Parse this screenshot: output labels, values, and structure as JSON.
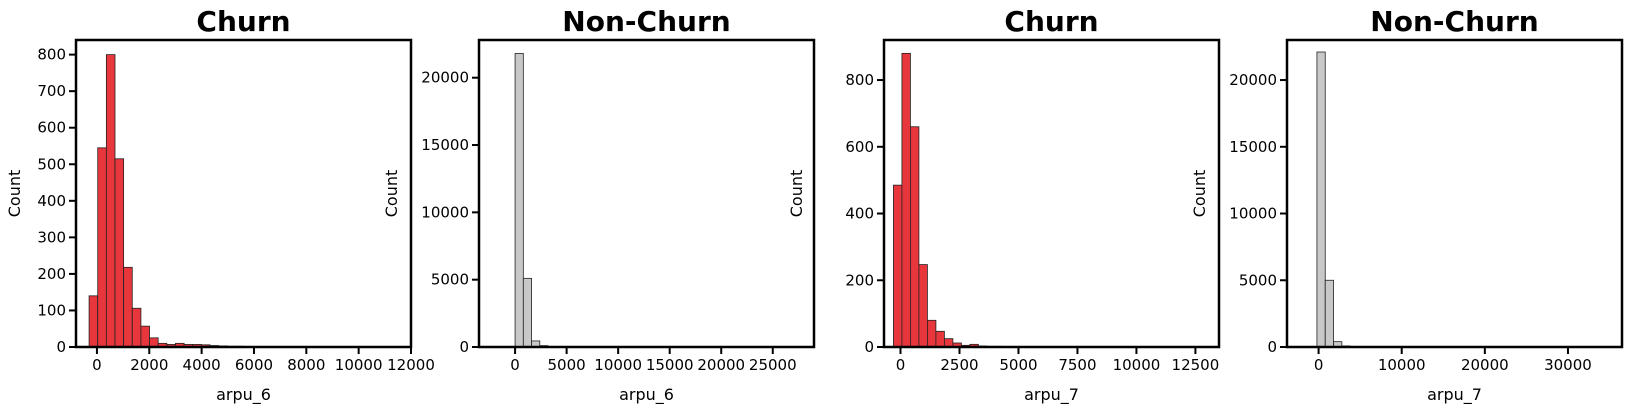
{
  "chart_data": [
    {
      "type": "bar",
      "title": "Churn",
      "xlabel": "arpu_6",
      "ylabel": "Count",
      "xlim": [
        -800,
        12000
      ],
      "ylim": [
        0,
        840
      ],
      "xticks": [
        0,
        2000,
        4000,
        6000,
        8000,
        10000,
        12000
      ],
      "yticks": [
        0,
        100,
        200,
        300,
        400,
        500,
        600,
        700,
        800
      ],
      "bin_start": -300,
      "bin_width": 330,
      "values": [
        140,
        545,
        800,
        515,
        218,
        106,
        57,
        25,
        10,
        7,
        10,
        7,
        7,
        6,
        4,
        3,
        2,
        2,
        1,
        1,
        1,
        1,
        1,
        1,
        1,
        1,
        1,
        1,
        1,
        0,
        0,
        1,
        0,
        0,
        1,
        1
      ],
      "color": "#e8363d",
      "edge_color": "#222222"
    },
    {
      "type": "bar",
      "title": "Non-Churn",
      "xlabel": "arpu_6",
      "ylabel": "Count",
      "xlim": [
        -3500,
        29000
      ],
      "ylim": [
        0,
        22800
      ],
      "xticks": [
        0,
        5000,
        10000,
        15000,
        20000,
        25000
      ],
      "yticks": [
        0,
        5000,
        10000,
        15000,
        20000
      ],
      "bin_start": 0,
      "bin_width": 800,
      "values": [
        21800,
        5100,
        450,
        100,
        40,
        20,
        10,
        5,
        3,
        2,
        1,
        1,
        1,
        1,
        1,
        1,
        1,
        1,
        1,
        1,
        1,
        1,
        1,
        1,
        1,
        1,
        1,
        1,
        1,
        1,
        1,
        1,
        1,
        1
      ],
      "color": "#c8c8c8",
      "edge_color": "#222222"
    },
    {
      "type": "bar",
      "title": "Churn",
      "xlabel": "arpu_7",
      "ylabel": "Count",
      "xlim": [
        -700,
        13500
      ],
      "ylim": [
        0,
        920
      ],
      "xticks": [
        0,
        2500,
        5000,
        7500,
        10000,
        12500
      ],
      "yticks": [
        0,
        200,
        400,
        600,
        800
      ],
      "bin_start": -300,
      "bin_width": 360,
      "values": [
        485,
        880,
        660,
        247,
        80,
        47,
        25,
        12,
        5,
        8,
        3,
        2,
        2,
        1,
        1,
        1,
        1,
        1,
        1,
        1,
        1,
        1,
        1,
        1,
        1,
        1,
        1,
        1,
        1,
        1,
        1,
        1,
        1,
        1,
        1,
        1,
        1,
        1
      ],
      "color": "#e8363d",
      "edge_color": "#222222"
    },
    {
      "type": "bar",
      "title": "Non-Churn",
      "xlabel": "arpu_7",
      "ylabel": "Count",
      "xlim": [
        -3800,
        36500
      ],
      "ylim": [
        0,
        23000
      ],
      "xticks": [
        0,
        10000,
        20000,
        30000
      ],
      "yticks": [
        0,
        5000,
        10000,
        15000,
        20000
      ],
      "bin_start": -200,
      "bin_width": 1000,
      "values": [
        22100,
        5000,
        400,
        80,
        30,
        10,
        5,
        3,
        2,
        1,
        1,
        1,
        1,
        1,
        1,
        1,
        1,
        1,
        1,
        1,
        1,
        1,
        1,
        1,
        1,
        1,
        1,
        1,
        1,
        1,
        1,
        1,
        1,
        1,
        1,
        1
      ],
      "color": "#c8c8c8",
      "edge_color": "#222222"
    }
  ]
}
